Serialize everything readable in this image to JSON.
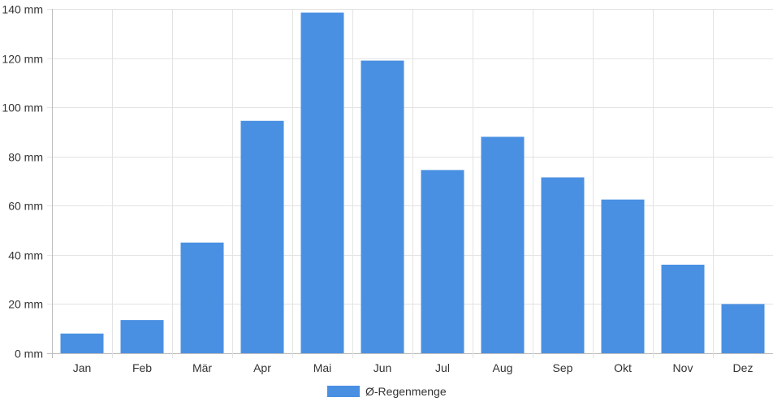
{
  "chart_data": {
    "type": "bar",
    "title": "",
    "xlabel": "",
    "ylabel": "",
    "categories": [
      "Jan",
      "Feb",
      "Mär",
      "Apr",
      "Mai",
      "Jun",
      "Jul",
      "Aug",
      "Sep",
      "Okt",
      "Nov",
      "Dez"
    ],
    "series": [
      {
        "name": "Ø-Regenmenge",
        "color": "#4a90e2",
        "values": [
          8,
          13.5,
          45,
          94.5,
          138.5,
          119,
          74.5,
          88,
          71.5,
          62.5,
          36,
          20
        ]
      }
    ],
    "ylim": [
      0,
      140
    ],
    "yticks": [
      0,
      20,
      40,
      60,
      80,
      100,
      120,
      140
    ],
    "ytick_labels": [
      "0 mm",
      "20 mm",
      "40 mm",
      "60 mm",
      "80 mm",
      "100 mm",
      "120 mm",
      "140 mm"
    ],
    "grid": true,
    "legend_position": "bottom-center"
  }
}
